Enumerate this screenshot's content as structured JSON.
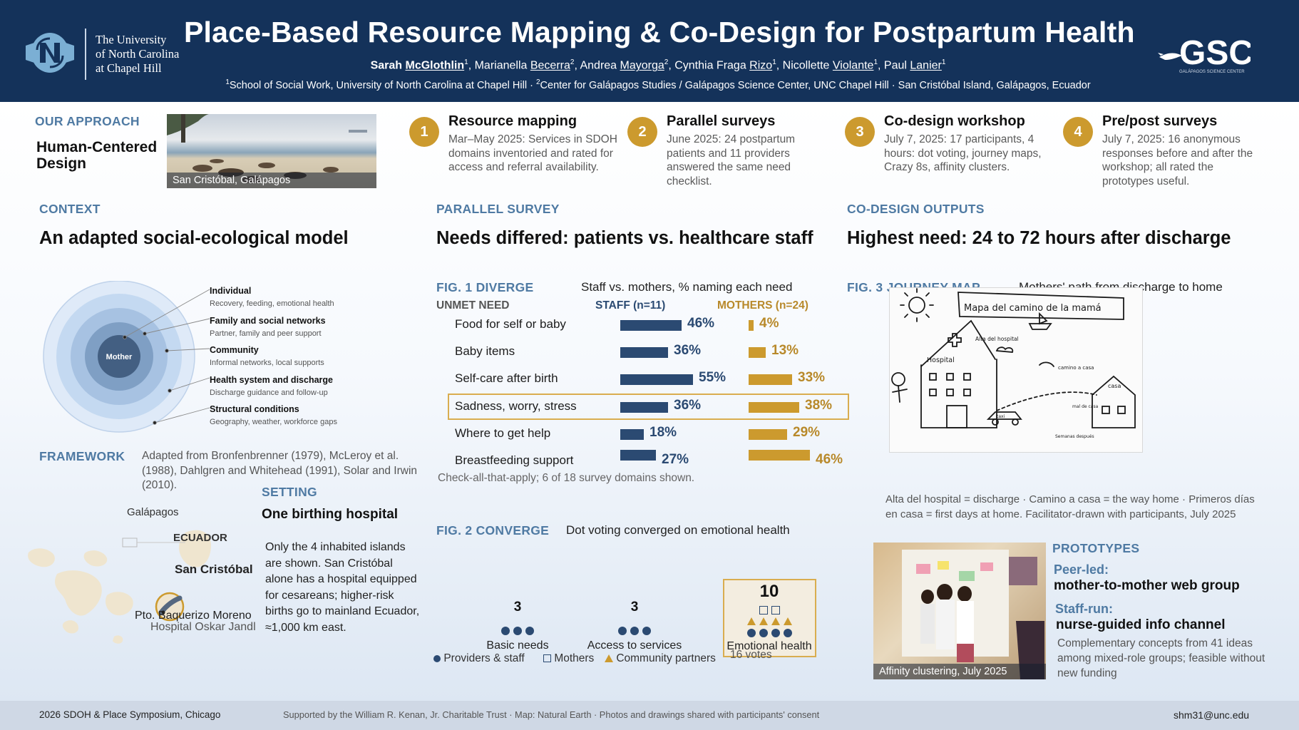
{
  "header": {
    "title": "Place-Based Resource Mapping & Co-Design for Postpartum Health",
    "institution_lines": [
      "The University",
      "of North Carolina",
      "at Chapel Hill"
    ],
    "authors": [
      {
        "first": "Sarah",
        "last": "McGlothlin",
        "sup": "1"
      },
      {
        "first": "Marianella",
        "last": "Becerra",
        "sup": "2"
      },
      {
        "first": "Andrea",
        "last": "Mayorga",
        "sup": "2"
      },
      {
        "first": "Cynthia Fraga",
        "last": "Rizo",
        "sup": "1"
      },
      {
        "first": "Nicollette",
        "last": "Violante",
        "sup": "1"
      },
      {
        "first": "Paul",
        "last": "Lanier",
        "sup": "1"
      }
    ],
    "affiliation_1": "School of Social Work, University of North Carolina at Chapel Hill",
    "affiliation_2": "Center for Galápagos Studies / Galápagos Science Center, UNC Chapel Hill · San Cristóbal Island, Galápagos, Ecuador",
    "right_logo_text": "GSC",
    "right_logo_sub": "GALÁPAGOS SCIENCE CENTER"
  },
  "approach": {
    "label": "OUR APPROACH",
    "heading": "Human-Centered Design",
    "photo_caption": "San Cristóbal, Galápagos"
  },
  "steps": [
    {
      "number": "1",
      "title": "Resource mapping",
      "text": "Mar–May 2025: Services in SDOH domains inventoried and rated for access and referral availability."
    },
    {
      "number": "2",
      "title": "Parallel surveys",
      "text": "June 2025: 24 postpartum patients and 11 providers answered the same need checklist."
    },
    {
      "number": "3",
      "title": "Co-design workshop",
      "text": "July 7, 2025: 17 participants, 4 hours: dot voting, journey maps, Crazy 8s, affinity clusters."
    },
    {
      "number": "4",
      "title": "Pre/post surveys",
      "text": "July 7, 2025: 16 anonymous responses before and after the workshop; all rated the prototypes useful."
    }
  ],
  "context": {
    "label": "CONTEXT",
    "heading": "An adapted social-ecological model",
    "center_label": "Mother",
    "levels": [
      {
        "title": "Individual",
        "desc": "Recovery, feeding, emotional health"
      },
      {
        "title": "Family and social networks",
        "desc": "Partner, family and peer support"
      },
      {
        "title": "Community",
        "desc": "Informal networks, local supports"
      },
      {
        "title": "Health system and discharge",
        "desc": "Discharge guidance and follow-up"
      },
      {
        "title": "Structural conditions",
        "desc": "Geography, weather, workforce gaps"
      }
    ]
  },
  "framework": {
    "label": "FRAMEWORK",
    "text": "Adapted from Bronfenbrenner (1979), McLeroy et al. (1988), Dahlgren and Whitehead (1991), Solar and Irwin (2010)."
  },
  "map": {
    "galapagos_label": "Galápagos",
    "ecuador_label": "ECUADOR",
    "island_label": "San Cristóbal",
    "town_label": "Pto. Baquerizo Moreno",
    "hospital_label": "Hospital Oskar Jandl"
  },
  "setting": {
    "label": "SETTING",
    "heading": "One birthing hospital",
    "text": "Only the 4 inhabited islands are shown. San Cristóbal alone has a hospital equipped for cesareans; higher-risk births go to mainland Ecuador, ≈1,000 km east."
  },
  "survey": {
    "label": "PARALLEL  SURVEY",
    "heading": "Needs differed: patients vs. healthcare staff"
  },
  "fig1": {
    "label": "FIG. 1  DIVERGE",
    "subtitle": "Staff vs. mothers, % naming each need",
    "col_need": "UNMET NEED",
    "col_staff": "STAFF (n=11)",
    "col_mothers": "MOTHERS (n=24)",
    "note": "Check-all-that-apply; 6 of 18 survey domains shown.",
    "highlight_index": 3,
    "colors": {
      "staff": "#2b4a72",
      "mothers": "#cc9a2e",
      "highlight_border": "#d9ad4f"
    }
  },
  "chart_data": [
    {
      "type": "bar",
      "categories": [
        "Food for self or baby",
        "Baby items",
        "Self-care after birth",
        "Sadness, worry, stress",
        "Where to get help",
        "Breastfeeding support"
      ],
      "series": [
        {
          "name": "STAFF (n=11)",
          "values": [
            46,
            36,
            55,
            36,
            18,
            27
          ]
        },
        {
          "name": "MOTHERS (n=24)",
          "values": [
            4,
            13,
            33,
            38,
            29,
            46
          ]
        }
      ],
      "labels": {
        "staff": [
          "46%",
          "36%",
          "55%",
          "36%",
          "18%",
          "27%"
        ],
        "mothers": [
          "4%",
          "13%",
          "33%",
          "38%",
          "29%",
          "46%"
        ]
      },
      "ylim": [
        0,
        100
      ]
    },
    {
      "type": "bar",
      "categories": [
        "Basic needs",
        "Access to services",
        "Emotional health"
      ],
      "values": [
        3,
        3,
        10
      ],
      "value_labels": [
        "3",
        "3",
        "10"
      ],
      "breakdown": [
        {
          "providers_staff": 3,
          "mothers": 0,
          "community_partners": 0
        },
        {
          "providers_staff": 3,
          "mothers": 0,
          "community_partners": 0
        },
        {
          "providers_staff": 4,
          "mothers": 2,
          "community_partners": 4
        }
      ]
    }
  ],
  "fig2": {
    "label": "FIG. 2  CONVERGE",
    "subtitle": "Dot voting converged on emotional health",
    "legend": [
      "Providers & staff",
      "Mothers",
      "Community partners"
    ],
    "total": "16 votes"
  },
  "outputs": {
    "label": "CO-DESIGN OUTPUTS",
    "heading": "Highest need: 24 to 72 hours after discharge"
  },
  "fig3": {
    "label": "FIG. 3  JOURNEY MAP",
    "subtitle": "Mothers' path from discharge to home",
    "drawing_text": [
      "Mapa del camino de la mamá",
      "Alta del hospital",
      "Hospital",
      "camino a casa",
      "casa",
      "Semanas después",
      "mal de casa",
      "taxi"
    ],
    "caption": "Alta del hospital = discharge · Camino a casa = the way home · Primeros días en casa = first days at home. Facilitator-drawn with participants, July 2025"
  },
  "prototypes": {
    "photo_caption": "Affinity clustering, July 2025",
    "label": "PROTOTYPES",
    "items": [
      {
        "kind": "Peer-led:",
        "name": "mother-to-mother web group"
      },
      {
        "kind": "Staff-run:",
        "name": "nurse-guided info channel"
      }
    ],
    "text": "Complementary concepts from 41 ideas among mixed-role groups; feasible without new funding"
  },
  "footer": {
    "left": "2026 SDOH & Place Symposium, Chicago",
    "center": "Supported by the William R. Kenan, Jr. Charitable Trust · Map: Natural Earth · Photos and drawings shared with participants' consent",
    "right": "shm31@unc.edu"
  }
}
